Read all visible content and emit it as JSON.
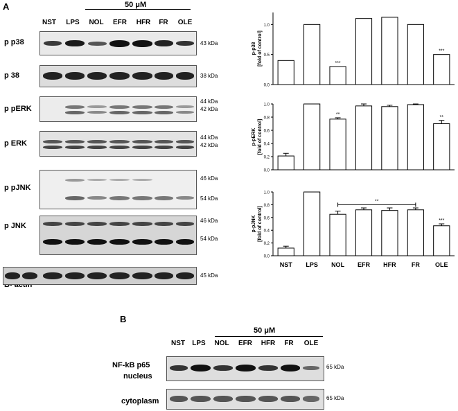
{
  "panelA": {
    "letter": "A",
    "concentration": "50 μM",
    "lanes": [
      "NST",
      "LPS",
      "NOL",
      "EFR",
      "HFR",
      "FR",
      "OLE"
    ],
    "blots": [
      {
        "label": "p p38",
        "kda": [
          "43 kDa"
        ]
      },
      {
        "label": "p 38",
        "kda": [
          "38 kDa"
        ]
      },
      {
        "label": "p pERK",
        "kda": [
          "44 kDa",
          "42 kDa"
        ]
      },
      {
        "label": "p ERK",
        "kda": [
          "44 kDa",
          "42 kDa"
        ]
      },
      {
        "label": "p pJNK",
        "kda": [
          "46 kDa",
          "54 kDa"
        ]
      },
      {
        "label": "p JNK",
        "kda": [
          "46 kDa",
          "54 kDa"
        ]
      },
      {
        "label": "B- actin",
        "kda": [
          "45 kDa"
        ]
      }
    ]
  },
  "panelB": {
    "letter": "B",
    "concentration": "50 μM",
    "lanes": [
      "NST",
      "LPS",
      "NOL",
      "EFR",
      "HFR",
      "FR",
      "OLE"
    ],
    "blots": [
      {
        "label_line1": "NF-kB p65",
        "label_line2": "nucleus",
        "kda": "65 kDa"
      },
      {
        "label": "cytoplasm",
        "kda": "65 kDa"
      }
    ]
  },
  "chart_data": [
    {
      "type": "bar",
      "ylabel": "p-p38\n[fold of control]",
      "categories": [
        "NST",
        "LPS",
        "NOL",
        "EFR",
        "HFR",
        "FR",
        "OLE"
      ],
      "values": [
        0.4,
        1.0,
        0.3,
        1.1,
        1.12,
        1.0,
        0.5
      ],
      "errors": [
        0,
        0,
        0,
        0,
        0,
        0,
        0
      ],
      "annotations": [
        "",
        "",
        "***",
        "",
        "",
        "",
        "***"
      ],
      "ylim": [
        0,
        1.2
      ],
      "yticks": [
        "0.0",
        "0.5",
        "1.0"
      ]
    },
    {
      "type": "bar",
      "ylabel": "p-pERK\n[fold of control]",
      "categories": [
        "NST",
        "LPS",
        "NOL",
        "EFR",
        "HFR",
        "FR",
        "OLE"
      ],
      "values": [
        0.21,
        1.0,
        0.77,
        0.97,
        0.96,
        0.99,
        0.7
      ],
      "errors": [
        0.04,
        0,
        0.02,
        0.03,
        0.02,
        0.01,
        0.05
      ],
      "annotations": [
        "",
        "",
        "**",
        "",
        "",
        "",
        "**"
      ],
      "ylim": [
        0,
        1.0
      ],
      "yticks": [
        "0.0",
        "0.2",
        "0.4",
        "0.6",
        "0.8",
        "1.0"
      ]
    },
    {
      "type": "bar",
      "ylabel": "p-pJNK\n[fold of control]",
      "categories": [
        "NST",
        "LPS",
        "NOL",
        "EFR",
        "HFR",
        "FR",
        "OLE"
      ],
      "values": [
        0.12,
        1.0,
        0.65,
        0.72,
        0.71,
        0.72,
        0.47
      ],
      "errors": [
        0.03,
        0,
        0.05,
        0.03,
        0.04,
        0.03,
        0.03
      ],
      "annotations": [
        "",
        "",
        "",
        "",
        "",
        "",
        "***"
      ],
      "bracket_label": "**",
      "ylim": [
        0,
        1.0
      ],
      "yticks": [
        "0.0",
        "0.2",
        "0.4",
        "0.6",
        "0.8",
        "1.0"
      ],
      "categories_shown": true
    }
  ]
}
